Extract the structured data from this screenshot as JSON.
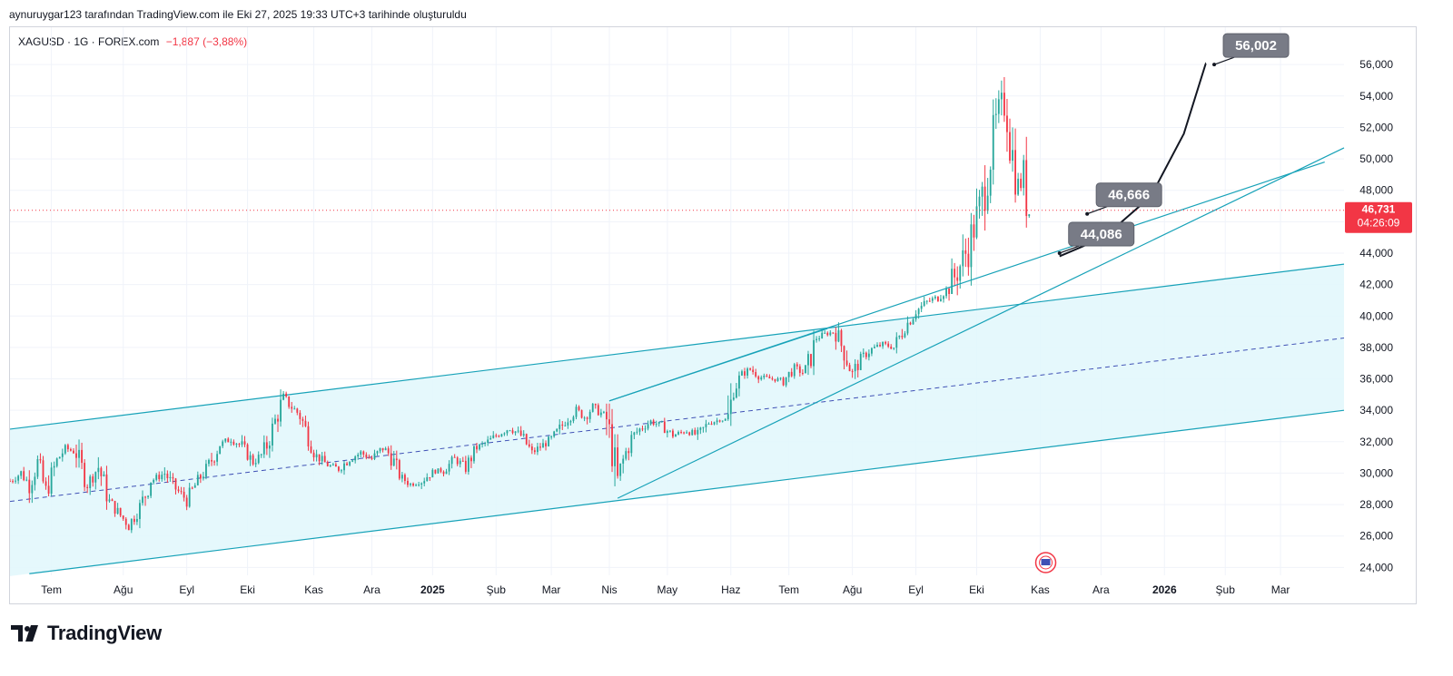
{
  "header": {
    "note": "aynuruygar123 tarafından TradingView.com ile Eki 27, 2025 19:33 UTC+3 tarihinde oluşturuldu"
  },
  "legend": {
    "symbol": "XAGUSD · 1G · FOREX.com",
    "change": "−1,887 (−3,88%)"
  },
  "brand": {
    "name": "TradingView",
    "icon": "tradingview-logo-icon"
  },
  "colors": {
    "up": "#26a69a",
    "down": "#f23645",
    "channel": "#17a2b8",
    "channel_fill": "#e0f7fb",
    "midline": "#3f51b5",
    "curve": "#131722",
    "callout": "#787b86"
  },
  "chart_data": {
    "type": "candlestick",
    "title": "XAGUSD · 1G · FOREX.com",
    "ylim": [
      23500,
      57800
    ],
    "y_ticks": [
      24000,
      26000,
      28000,
      30000,
      32000,
      34000,
      36000,
      38000,
      40000,
      42000,
      44000,
      46000,
      48000,
      50000,
      52000,
      54000,
      56000
    ],
    "y_tick_labels": [
      "24,000",
      "26,000",
      "28,000",
      "30,000",
      "32,000",
      "34,000",
      "36,000",
      "38,000",
      "40,000",
      "42,000",
      "44,000",
      "46,000",
      "48,000",
      "50,000",
      "52,000",
      "54,000",
      "56,000"
    ],
    "x_range": [
      0,
      483
    ],
    "x_ticks": [
      {
        "t": 15,
        "label": "Tem",
        "bold": false
      },
      {
        "t": 41,
        "label": "Ağu",
        "bold": false
      },
      {
        "t": 64,
        "label": "Eyl",
        "bold": false
      },
      {
        "t": 86,
        "label": "Eki",
        "bold": false
      },
      {
        "t": 110,
        "label": "Kas",
        "bold": false
      },
      {
        "t": 131,
        "label": "Ara",
        "bold": false
      },
      {
        "t": 153,
        "label": "2025",
        "bold": true
      },
      {
        "t": 176,
        "label": "Şub",
        "bold": false
      },
      {
        "t": 196,
        "label": "Mar",
        "bold": false
      },
      {
        "t": 217,
        "label": "Nis",
        "bold": false
      },
      {
        "t": 238,
        "label": "May",
        "bold": false
      },
      {
        "t": 261,
        "label": "Haz",
        "bold": false
      },
      {
        "t": 282,
        "label": "Tem",
        "bold": false
      },
      {
        "t": 305,
        "label": "Ağu",
        "bold": false
      },
      {
        "t": 328,
        "label": "Eyl",
        "bold": false
      },
      {
        "t": 350,
        "label": "Eki",
        "bold": false
      },
      {
        "t": 373,
        "label": "Kas",
        "bold": false
      },
      {
        "t": 395,
        "label": "Ara",
        "bold": false
      },
      {
        "t": 418,
        "label": "2026",
        "bold": true
      },
      {
        "t": 440,
        "label": "Şub",
        "bold": false
      },
      {
        "t": 460,
        "label": "Mar",
        "bold": false
      }
    ],
    "price_anchors": [
      [
        0,
        29500
      ],
      [
        4,
        30000
      ],
      [
        7,
        29300
      ],
      [
        10,
        30600
      ],
      [
        13,
        28800
      ],
      [
        17,
        30800
      ],
      [
        20,
        31600
      ],
      [
        24,
        31300
      ],
      [
        28,
        29300
      ],
      [
        32,
        30400
      ],
      [
        36,
        28200
      ],
      [
        40,
        27300
      ],
      [
        43,
        26700
      ],
      [
        47,
        27800
      ],
      [
        51,
        29500
      ],
      [
        56,
        30000
      ],
      [
        60,
        29000
      ],
      [
        64,
        28300
      ],
      [
        68,
        29500
      ],
      [
        72,
        30500
      ],
      [
        76,
        31800
      ],
      [
        80,
        32200
      ],
      [
        84,
        31700
      ],
      [
        88,
        30700
      ],
      [
        92,
        31300
      ],
      [
        96,
        33300
      ],
      [
        99,
        34800
      ],
      [
        102,
        34200
      ],
      [
        105,
        33700
      ],
      [
        108,
        32300
      ],
      [
        111,
        31100
      ],
      [
        115,
        30500
      ],
      [
        119,
        30300
      ],
      [
        123,
        30900
      ],
      [
        127,
        31300
      ],
      [
        131,
        30900
      ],
      [
        135,
        31600
      ],
      [
        138,
        31100
      ],
      [
        141,
        29800
      ],
      [
        145,
        29300
      ],
      [
        149,
        29500
      ],
      [
        153,
        30100
      ],
      [
        157,
        30200
      ],
      [
        161,
        30900
      ],
      [
        165,
        30400
      ],
      [
        169,
        31600
      ],
      [
        173,
        32000
      ],
      [
        177,
        32500
      ],
      [
        181,
        32900
      ],
      [
        185,
        32400
      ],
      [
        189,
        31300
      ],
      [
        193,
        31800
      ],
      [
        197,
        32300
      ],
      [
        201,
        33300
      ],
      [
        205,
        34000
      ],
      [
        208,
        33600
      ],
      [
        211,
        34200
      ],
      [
        214,
        33800
      ],
      [
        216,
        33400
      ],
      [
        218,
        31500
      ],
      [
        220,
        29500
      ],
      [
        222,
        30800
      ],
      [
        225,
        32300
      ],
      [
        228,
        32800
      ],
      [
        232,
        33300
      ],
      [
        236,
        33000
      ],
      [
        240,
        32400
      ],
      [
        245,
        32700
      ],
      [
        249,
        32400
      ],
      [
        253,
        33200
      ],
      [
        257,
        33400
      ],
      [
        260,
        33400
      ],
      [
        262,
        35300
      ],
      [
        265,
        36300
      ],
      [
        268,
        36600
      ],
      [
        272,
        36100
      ],
      [
        276,
        36000
      ],
      [
        280,
        35900
      ],
      [
        284,
        36700
      ],
      [
        288,
        36300
      ],
      [
        292,
        38600
      ],
      [
        296,
        38900
      ],
      [
        299,
        39000
      ],
      [
        302,
        37700
      ],
      [
        305,
        36300
      ],
      [
        308,
        37300
      ],
      [
        312,
        37900
      ],
      [
        316,
        38200
      ],
      [
        320,
        38000
      ],
      [
        324,
        39300
      ],
      [
        328,
        40300
      ],
      [
        332,
        40900
      ],
      [
        336,
        41200
      ],
      [
        340,
        41800
      ],
      [
        344,
        43200
      ],
      [
        347,
        44400
      ],
      [
        350,
        46300
      ],
      [
        352,
        47400
      ],
      [
        354,
        49300
      ],
      [
        356,
        51300
      ],
      [
        358,
        52900
      ],
      [
        360,
        53700
      ],
      [
        362,
        52100
      ],
      [
        363,
        50200
      ],
      [
        365,
        48400
      ],
      [
        367,
        48500
      ],
      [
        369,
        46600
      ]
    ],
    "candle_count": 370,
    "last_price": "46,731",
    "last_price_value": 46731,
    "countdown": "04:26:09",
    "channel": {
      "upper": [
        [
          0,
          32800
        ],
        [
          483,
          43300
        ]
      ],
      "middle": [
        [
          0,
          28200
        ],
        [
          483,
          38600
        ]
      ],
      "lower": [
        [
          7,
          23600
        ],
        [
          483,
          34000
        ]
      ]
    },
    "trendlines": [
      {
        "name": "rising-support-line",
        "from": [
          220,
          28400
        ],
        "to": [
          483,
          50700
        ]
      },
      {
        "name": "steep-support-line",
        "from": [
          217,
          34600
        ],
        "to": [
          476,
          49800
        ]
      },
      {
        "name": "april-to-august-upper-line",
        "from": [
          217,
          34600
        ],
        "to": [
          296,
          39200
        ]
      }
    ],
    "projection_curve": {
      "points": [
        [
          380,
          43800
        ],
        [
          396,
          45000
        ],
        [
          413,
          47600
        ],
        [
          425,
          51600
        ],
        [
          433,
          56100
        ]
      ]
    },
    "callouts": [
      {
        "label": "56,002",
        "at": [
          436,
          56000
        ],
        "value": 56002
      },
      {
        "label": "46,666",
        "at": [
          390,
          46500
        ],
        "value": 46666
      },
      {
        "label": "44,086",
        "at": [
          380,
          44000
        ],
        "value": 44086
      }
    ],
    "event_marker": {
      "t": 375,
      "label": "US economic event",
      "icon": "us-flag-event-icon"
    }
  }
}
